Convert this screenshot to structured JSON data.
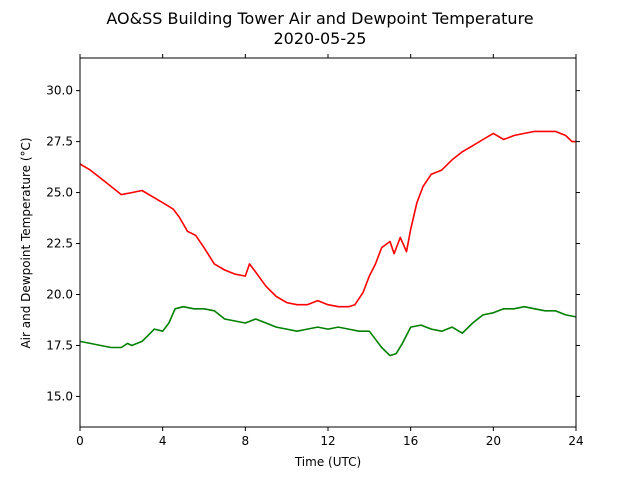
{
  "chart_data": {
    "type": "line",
    "title": "AO&SS Building Tower Air and Dewpoint Temperature",
    "subtitle": "2020-05-25",
    "xlabel": "Time (UTC)",
    "ylabel": "Air and Dewpoint Temperature (°C)",
    "xlim": [
      0,
      24
    ],
    "ylim": [
      13.5,
      31.6
    ],
    "xticks": [
      0,
      4,
      8,
      12,
      16,
      20,
      24
    ],
    "yticks": [
      15.0,
      17.5,
      20.0,
      22.5,
      25.0,
      27.5,
      30.0
    ],
    "ytick_labels": [
      "15.0",
      "17.5",
      "20.0",
      "22.5",
      "25.0",
      "27.5",
      "30.0"
    ],
    "grid": false,
    "series": [
      {
        "color": "#ff0000",
        "x": [
          0,
          0.5,
          1,
          1.5,
          2,
          2.5,
          3,
          3.5,
          4,
          4.5,
          4.8,
          5.2,
          5.6,
          6,
          6.5,
          7,
          7.5,
          8,
          8.2,
          8.5,
          9,
          9.5,
          10,
          10.5,
          11,
          11.5,
          12,
          12.5,
          13,
          13.3,
          13.7,
          14,
          14.3,
          14.6,
          15,
          15.2,
          15.5,
          15.8,
          16,
          16.3,
          16.6,
          17,
          17.5,
          18,
          18.5,
          19,
          19.5,
          20,
          20.5,
          21,
          21.5,
          22,
          22.5,
          23,
          23.5,
          23.8,
          24
        ],
        "values": [
          26.4,
          26.1,
          25.7,
          25.3,
          24.9,
          25.0,
          25.1,
          24.8,
          24.5,
          24.2,
          23.8,
          23.1,
          22.9,
          22.3,
          21.5,
          21.2,
          21.0,
          20.9,
          21.5,
          21.1,
          20.4,
          19.9,
          19.6,
          19.5,
          19.5,
          19.7,
          19.5,
          19.4,
          19.4,
          19.5,
          20.1,
          20.9,
          21.5,
          22.3,
          22.6,
          22.0,
          22.8,
          22.1,
          23.2,
          24.5,
          25.3,
          25.9,
          26.1,
          26.6,
          27.0,
          27.3,
          27.6,
          27.9,
          27.6,
          27.8,
          27.9,
          28.0,
          28.0,
          28.0,
          27.8,
          27.5,
          27.5
        ]
      },
      {
        "color": "#008000",
        "x": [
          0,
          0.5,
          1,
          1.5,
          2,
          2.3,
          2.5,
          3,
          3.3,
          3.6,
          4,
          4.3,
          4.6,
          5,
          5.5,
          6,
          6.5,
          7,
          7.5,
          8,
          8.5,
          9,
          9.5,
          10,
          10.5,
          11,
          11.5,
          12,
          12.5,
          13,
          13.5,
          14,
          14.3,
          14.6,
          15,
          15.3,
          15.6,
          16,
          16.5,
          17,
          17.5,
          18,
          18.5,
          19,
          19.5,
          20,
          20.5,
          21,
          21.5,
          22,
          22.5,
          23,
          23.5,
          24
        ],
        "values": [
          17.7,
          17.6,
          17.5,
          17.4,
          17.4,
          17.6,
          17.5,
          17.7,
          18.0,
          18.3,
          18.2,
          18.6,
          19.3,
          19.4,
          19.3,
          19.3,
          19.2,
          18.8,
          18.7,
          18.6,
          18.8,
          18.6,
          18.4,
          18.3,
          18.2,
          18.3,
          18.4,
          18.3,
          18.4,
          18.3,
          18.2,
          18.2,
          17.8,
          17.4,
          17.0,
          17.1,
          17.6,
          18.4,
          18.5,
          18.3,
          18.2,
          18.4,
          18.1,
          18.6,
          19.0,
          19.1,
          19.3,
          19.3,
          19.4,
          19.3,
          19.2,
          19.2,
          19.0,
          18.9
        ]
      }
    ]
  }
}
